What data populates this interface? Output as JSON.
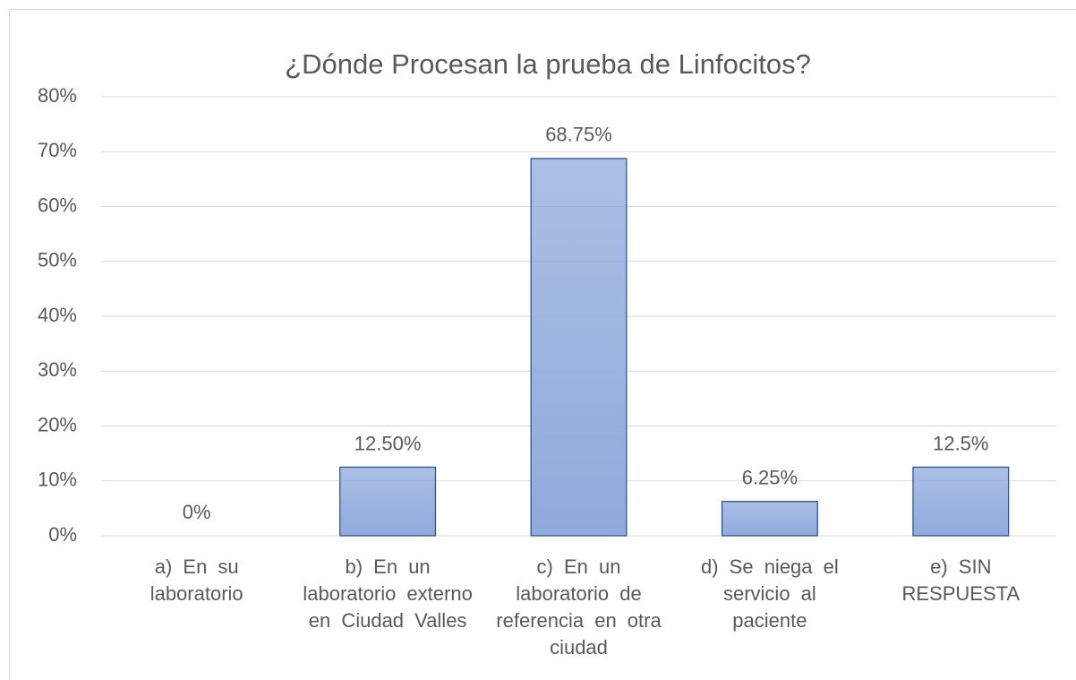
{
  "chart_data": {
    "type": "bar",
    "title": "¿Dónde Procesan la prueba de Linfocitos?",
    "categories": [
      "a) En su laboratorio",
      "b) En un laboratorio externo en Ciudad Valles",
      "c) En un laboratorio de referencia en otra ciudad",
      "d) Se niega el servicio al paciente",
      "e) SIN RESPUESTA"
    ],
    "values": [
      0,
      12.5,
      68.75,
      6.25,
      12.5
    ],
    "value_labels": [
      "0%",
      "12.50%",
      "68.75%",
      "6.25%",
      "12.5%"
    ],
    "color": "#8faadc",
    "ylim": [
      0,
      80
    ],
    "yticks": [
      {
        "value": 0,
        "label": "0%"
      },
      {
        "value": 10,
        "label": "10%"
      },
      {
        "value": 20,
        "label": "20%"
      },
      {
        "value": 30,
        "label": "30%"
      },
      {
        "value": 40,
        "label": "40%"
      },
      {
        "value": 50,
        "label": "50%"
      },
      {
        "value": 60,
        "label": "60%"
      },
      {
        "value": 70,
        "label": "70%"
      },
      {
        "value": 80,
        "label": "80%"
      }
    ],
    "grid": true
  }
}
